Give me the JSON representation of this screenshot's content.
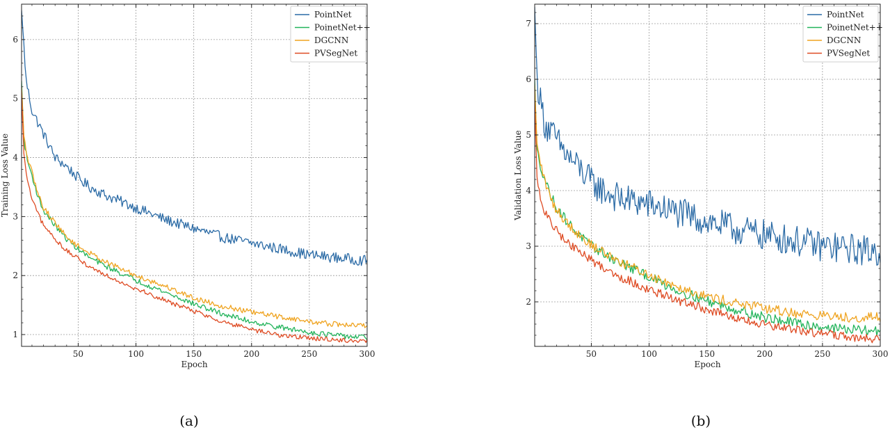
{
  "colors": {
    "PointNet": "#2a6aa5",
    "PoinetNet++": "#21b35a",
    "DGCNN": "#efa31f",
    "PVSegNet": "#de4a22"
  },
  "chart_data": [
    {
      "type": "line",
      "panel_label": "(a)",
      "xlabel": "Epoch",
      "ylabel": "Training Loss Value",
      "xlim": [
        1,
        300
      ],
      "ylim": [
        0.8,
        6.6
      ],
      "xticks": [
        50,
        100,
        150,
        200,
        250,
        300
      ],
      "yticks": [
        1,
        2,
        3,
        4,
        5,
        6
      ],
      "grid": true,
      "legend": "top-right",
      "series": [
        {
          "name": "PointNet",
          "x": [
            1,
            5,
            10,
            20,
            30,
            40,
            50,
            60,
            75,
            100,
            125,
            150,
            175,
            200,
            225,
            250,
            275,
            300
          ],
          "values": [
            6.5,
            5.3,
            4.8,
            4.4,
            4.0,
            3.85,
            3.65,
            3.5,
            3.35,
            3.15,
            2.95,
            2.8,
            2.65,
            2.55,
            2.45,
            2.35,
            2.3,
            2.25
          ]
        },
        {
          "name": "PoinetNet++",
          "x": [
            1,
            3,
            6,
            10,
            15,
            20,
            30,
            40,
            50,
            60,
            75,
            100,
            125,
            150,
            175,
            200,
            225,
            250,
            275,
            300
          ],
          "values": [
            5.3,
            4.3,
            3.95,
            3.7,
            3.35,
            3.1,
            2.85,
            2.62,
            2.45,
            2.3,
            2.15,
            1.92,
            1.72,
            1.52,
            1.35,
            1.22,
            1.12,
            1.04,
            0.98,
            0.95
          ]
        },
        {
          "name": "DGCNN",
          "x": [
            1,
            3,
            6,
            10,
            15,
            20,
            30,
            40,
            50,
            60,
            75,
            100,
            125,
            150,
            175,
            200,
            225,
            250,
            275,
            300
          ],
          "values": [
            5.2,
            4.35,
            4.0,
            3.75,
            3.4,
            3.15,
            2.9,
            2.65,
            2.5,
            2.38,
            2.22,
            2.0,
            1.82,
            1.62,
            1.48,
            1.38,
            1.3,
            1.22,
            1.17,
            1.15
          ]
        },
        {
          "name": "PVSegNet",
          "x": [
            1,
            3,
            6,
            10,
            15,
            20,
            30,
            40,
            50,
            60,
            75,
            100,
            125,
            150,
            175,
            200,
            225,
            250,
            275,
            300
          ],
          "values": [
            5.1,
            4.05,
            3.6,
            3.3,
            3.05,
            2.85,
            2.62,
            2.42,
            2.28,
            2.15,
            2.0,
            1.78,
            1.58,
            1.4,
            1.22,
            1.08,
            0.99,
            0.94,
            0.91,
            0.88
          ]
        }
      ]
    },
    {
      "type": "line",
      "panel_label": "(b)",
      "xlabel": "Epoch",
      "ylabel": "Validation Loss Value",
      "xlim": [
        1,
        300
      ],
      "ylim": [
        1.2,
        7.35
      ],
      "xticks": [
        50,
        100,
        150,
        200,
        250,
        300
      ],
      "yticks": [
        2,
        3,
        4,
        5,
        6,
        7
      ],
      "grid": true,
      "legend": "top-right",
      "series": [
        {
          "name": "PointNet",
          "x": [
            1,
            3,
            6,
            10,
            20,
            30,
            40,
            50,
            60,
            75,
            100,
            125,
            150,
            175,
            200,
            225,
            250,
            275,
            300
          ],
          "values": [
            7.3,
            6.0,
            5.6,
            5.2,
            4.9,
            4.6,
            4.4,
            4.15,
            4.0,
            3.85,
            3.75,
            3.6,
            3.45,
            3.3,
            3.2,
            3.1,
            3.0,
            2.95,
            2.9
          ]
        },
        {
          "name": "PoinetNet++",
          "x": [
            1,
            3,
            6,
            10,
            15,
            20,
            30,
            40,
            50,
            60,
            75,
            100,
            125,
            150,
            175,
            200,
            225,
            250,
            275,
            300
          ],
          "values": [
            6.0,
            4.7,
            4.45,
            4.2,
            3.9,
            3.7,
            3.42,
            3.2,
            3.0,
            2.88,
            2.7,
            2.45,
            2.2,
            2.02,
            1.86,
            1.72,
            1.62,
            1.55,
            1.5,
            1.47
          ]
        },
        {
          "name": "DGCNN",
          "x": [
            1,
            3,
            6,
            10,
            15,
            20,
            30,
            40,
            50,
            60,
            75,
            100,
            125,
            150,
            175,
            200,
            225,
            250,
            275,
            300
          ],
          "values": [
            5.9,
            4.8,
            4.5,
            4.15,
            3.85,
            3.65,
            3.4,
            3.2,
            3.02,
            2.9,
            2.72,
            2.48,
            2.28,
            2.1,
            1.98,
            1.88,
            1.8,
            1.75,
            1.72,
            1.72
          ]
        },
        {
          "name": "PVSegNet",
          "x": [
            1,
            3,
            6,
            10,
            15,
            20,
            30,
            40,
            50,
            60,
            75,
            100,
            125,
            150,
            175,
            200,
            225,
            250,
            275,
            300
          ],
          "values": [
            5.6,
            4.2,
            3.85,
            3.6,
            3.42,
            3.28,
            3.05,
            2.9,
            2.75,
            2.62,
            2.45,
            2.22,
            2.02,
            1.86,
            1.7,
            1.58,
            1.5,
            1.43,
            1.36,
            1.32
          ]
        }
      ]
    }
  ]
}
